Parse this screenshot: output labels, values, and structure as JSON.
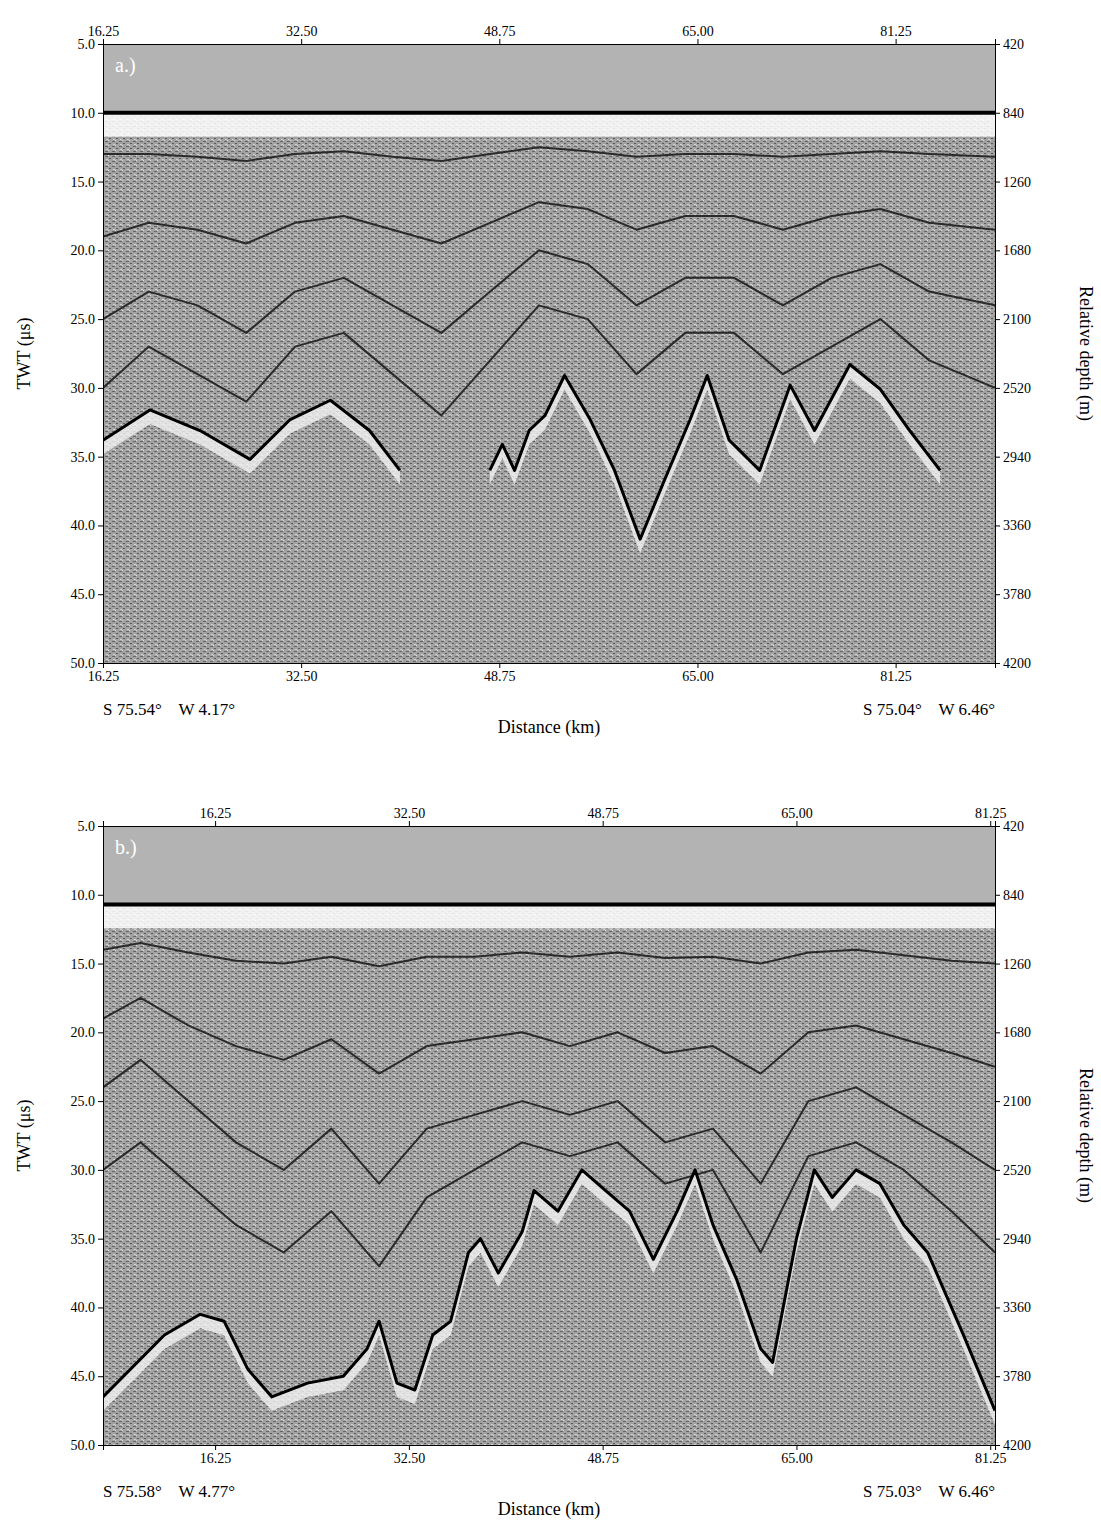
{
  "chart_data": [
    {
      "type": "line",
      "panel_label": "a.)",
      "xlabel": "Distance (km)",
      "ylabel": "TWT (μs)",
      "y2label": "Relative depth (m)",
      "start_coordinates": "S 75.54°    W 4.17°",
      "end_coordinates": "S 75.04°    W 6.46°",
      "xlim": [
        16.25,
        89.4
      ],
      "xticks": [
        16.25,
        {
          "value": 32.5,
          "label": "32.50"
        },
        48.75,
        {
          "value": 65,
          "label": "65.00"
        },
        81.25
      ],
      "ylim": [
        5,
        50
      ],
      "yticks": [
        {
          "value": 5,
          "label": "5.0"
        },
        {
          "value": 10,
          "label": "10.0"
        },
        {
          "value": 15,
          "label": "15.0"
        },
        {
          "value": 20,
          "label": "20.0"
        },
        {
          "value": 25,
          "label": "25.0"
        },
        {
          "value": 30,
          "label": "30.0"
        },
        {
          "value": 35,
          "label": "35.0"
        },
        {
          "value": 40,
          "label": "40.0"
        },
        {
          "value": 45,
          "label": "45.0"
        },
        {
          "value": 50,
          "label": "50.0"
        }
      ],
      "y2lim": [
        420,
        4200
      ],
      "y2ticks": [
        420,
        840,
        1260,
        1680,
        2100,
        2520,
        2940,
        3360,
        3780,
        4200
      ],
      "series": [
        {
          "color": "#000000",
          "x": [
            16.25,
            89.4
          ],
          "values": [
            10,
            10
          ]
        },
        {
          "color": "#2a2a2a",
          "x": [
            16.25,
            20,
            24,
            28,
            32,
            36,
            40,
            44,
            48,
            52,
            56,
            60,
            64,
            68,
            72,
            76,
            80,
            84,
            89.4
          ],
          "values": [
            13,
            13,
            13.2,
            13.5,
            13,
            12.8,
            13.2,
            13.5,
            13,
            12.5,
            12.8,
            13.2,
            13,
            13,
            13.2,
            13,
            12.8,
            13,
            13.2
          ]
        },
        {
          "color": "#2a2a2a",
          "x": [
            16.25,
            20,
            24,
            28,
            32,
            36,
            40,
            44,
            48,
            52,
            56,
            60,
            64,
            68,
            72,
            76,
            80,
            84,
            89.4
          ],
          "values": [
            19,
            18,
            18.5,
            19.5,
            18,
            17.5,
            18.5,
            19.5,
            18,
            16.5,
            17,
            18.5,
            17.5,
            17.5,
            18.5,
            17.5,
            17,
            18,
            18.5
          ]
        },
        {
          "color": "#2a2a2a",
          "x": [
            16.25,
            20,
            24,
            28,
            32,
            36,
            40,
            44,
            48,
            52,
            56,
            60,
            64,
            68,
            72,
            76,
            80,
            84,
            89.4
          ],
          "values": [
            25,
            23,
            24,
            26,
            23,
            22,
            24,
            26,
            23,
            20,
            21,
            24,
            22,
            22,
            24,
            22,
            21,
            23,
            24
          ]
        },
        {
          "color": "#2a2a2a",
          "x": [
            16.25,
            20,
            24,
            28,
            32,
            36,
            40,
            44,
            48,
            52,
            56,
            60,
            64,
            68,
            72,
            76,
            80,
            84,
            89.4
          ],
          "values": [
            30,
            27,
            29,
            31,
            27,
            26,
            29,
            32,
            28,
            24,
            25,
            29,
            26,
            26,
            29,
            27,
            25,
            28,
            30
          ]
        },
        {
          "color": "#000000",
          "x": [
            16.25,
            20.1,
            24.2,
            28.3,
            31.6,
            34.9,
            38.1,
            40.6,
            44,
            47.97,
            49,
            50,
            51.2,
            52.5,
            54.1,
            56.2,
            58.2,
            60.3,
            62.3,
            64.4,
            65.8,
            67.6,
            70.1,
            72.6,
            74.6,
            77.5,
            80,
            82.4,
            84.9
          ],
          "values": [
            33.8,
            31.6,
            33.1,
            35.2,
            32.3,
            30.9,
            33.1,
            36,
            null,
            36,
            34.1,
            36,
            33.1,
            32,
            29.1,
            32.3,
            36,
            41,
            36.7,
            32.3,
            29.1,
            33.8,
            36,
            29.8,
            33.1,
            28.3,
            30.1,
            33.1,
            36
          ]
        }
      ]
    },
    {
      "type": "line",
      "panel_label": "b.)",
      "xlabel": "Distance (km)",
      "ylabel": "TWT (μs)",
      "y2label": "Relative depth (m)",
      "start_coordinates": "S 75.58°    W 4.77°",
      "end_coordinates": "S 75.03°    W 6.46°",
      "xlim": [
        6.85,
        81.65
      ],
      "xticks": [
        16.25,
        {
          "value": 32.5,
          "label": "32.50"
        },
        48.75,
        {
          "value": 65,
          "label": "65.00"
        },
        81.25
      ],
      "ylim": [
        5,
        50
      ],
      "yticks": [
        {
          "value": 5,
          "label": "5.0"
        },
        {
          "value": 10,
          "label": "10.0"
        },
        {
          "value": 15,
          "label": "15.0"
        },
        {
          "value": 20,
          "label": "20.0"
        },
        {
          "value": 25,
          "label": "25.0"
        },
        {
          "value": 30,
          "label": "30.0"
        },
        {
          "value": 35,
          "label": "35.0"
        },
        {
          "value": 40,
          "label": "40.0"
        },
        {
          "value": 45,
          "label": "45.0"
        },
        {
          "value": 50,
          "label": "50.0"
        }
      ],
      "y2lim": [
        420,
        4200
      ],
      "y2ticks": [
        420,
        840,
        1260,
        1680,
        2100,
        2520,
        2940,
        3360,
        3780,
        4200
      ],
      "series": [
        {
          "color": "#000000",
          "x": [
            6.85,
            81.65
          ],
          "values": [
            10.7,
            10.7
          ]
        },
        {
          "color": "#2a2a2a",
          "x": [
            6.85,
            10,
            14,
            18,
            22,
            26,
            30,
            34,
            38,
            42,
            46,
            50,
            54,
            58,
            62,
            66,
            70,
            74,
            78,
            81.65
          ],
          "values": [
            14,
            13.5,
            14.2,
            14.8,
            15,
            14.5,
            15.2,
            14.5,
            14.5,
            14.2,
            14.5,
            14.2,
            14.6,
            14.5,
            15,
            14.2,
            14,
            14.4,
            14.8,
            15
          ]
        },
        {
          "color": "#2a2a2a",
          "x": [
            6.85,
            10,
            14,
            18,
            22,
            26,
            30,
            34,
            38,
            42,
            46,
            50,
            54,
            58,
            62,
            66,
            70,
            74,
            78,
            81.65
          ],
          "values": [
            19,
            17.5,
            19.5,
            21,
            22,
            20.5,
            23,
            21,
            20.5,
            20,
            21,
            20,
            21.5,
            21,
            23,
            20,
            19.5,
            20.5,
            21.5,
            22.5
          ]
        },
        {
          "color": "#2a2a2a",
          "x": [
            6.85,
            10,
            14,
            18,
            22,
            26,
            30,
            34,
            38,
            42,
            46,
            50,
            54,
            58,
            62,
            66,
            70,
            74,
            78,
            81.65
          ],
          "values": [
            24,
            22,
            25,
            28,
            30,
            27,
            31,
            27,
            26,
            25,
            26,
            25,
            28,
            27,
            31,
            25,
            24,
            26,
            28,
            30
          ]
        },
        {
          "color": "#2a2a2a",
          "x": [
            6.85,
            10,
            14,
            18,
            22,
            26,
            30,
            34,
            38,
            42,
            46,
            50,
            54,
            58,
            62,
            66,
            70,
            74,
            78,
            81.65
          ],
          "values": [
            30,
            28,
            31,
            34,
            36,
            33,
            37,
            32,
            30,
            28,
            29,
            28,
            31,
            30,
            36,
            29,
            28,
            30,
            33,
            36
          ]
        },
        {
          "color": "#000000",
          "x": [
            6.85,
            12,
            15,
            17,
            19,
            21,
            24,
            27,
            29,
            30,
            31.5,
            33,
            34.5,
            36,
            37.5,
            38.5,
            40,
            42,
            43,
            45,
            47,
            49,
            51,
            53,
            55,
            56.5,
            58,
            60,
            62,
            63,
            65,
            66.5,
            68,
            70,
            72,
            74,
            76,
            79,
            81.65
          ],
          "values": [
            46.5,
            42,
            40.5,
            41,
            44.5,
            46.5,
            45.5,
            45,
            43,
            41,
            45.5,
            46,
            42,
            41,
            36,
            35,
            37.5,
            34.5,
            31.5,
            33,
            30,
            31.5,
            33,
            36.5,
            33,
            30,
            34,
            38,
            43,
            44,
            35,
            30,
            32,
            30,
            31,
            34,
            36,
            42,
            47.5
          ]
        }
      ]
    }
  ]
}
